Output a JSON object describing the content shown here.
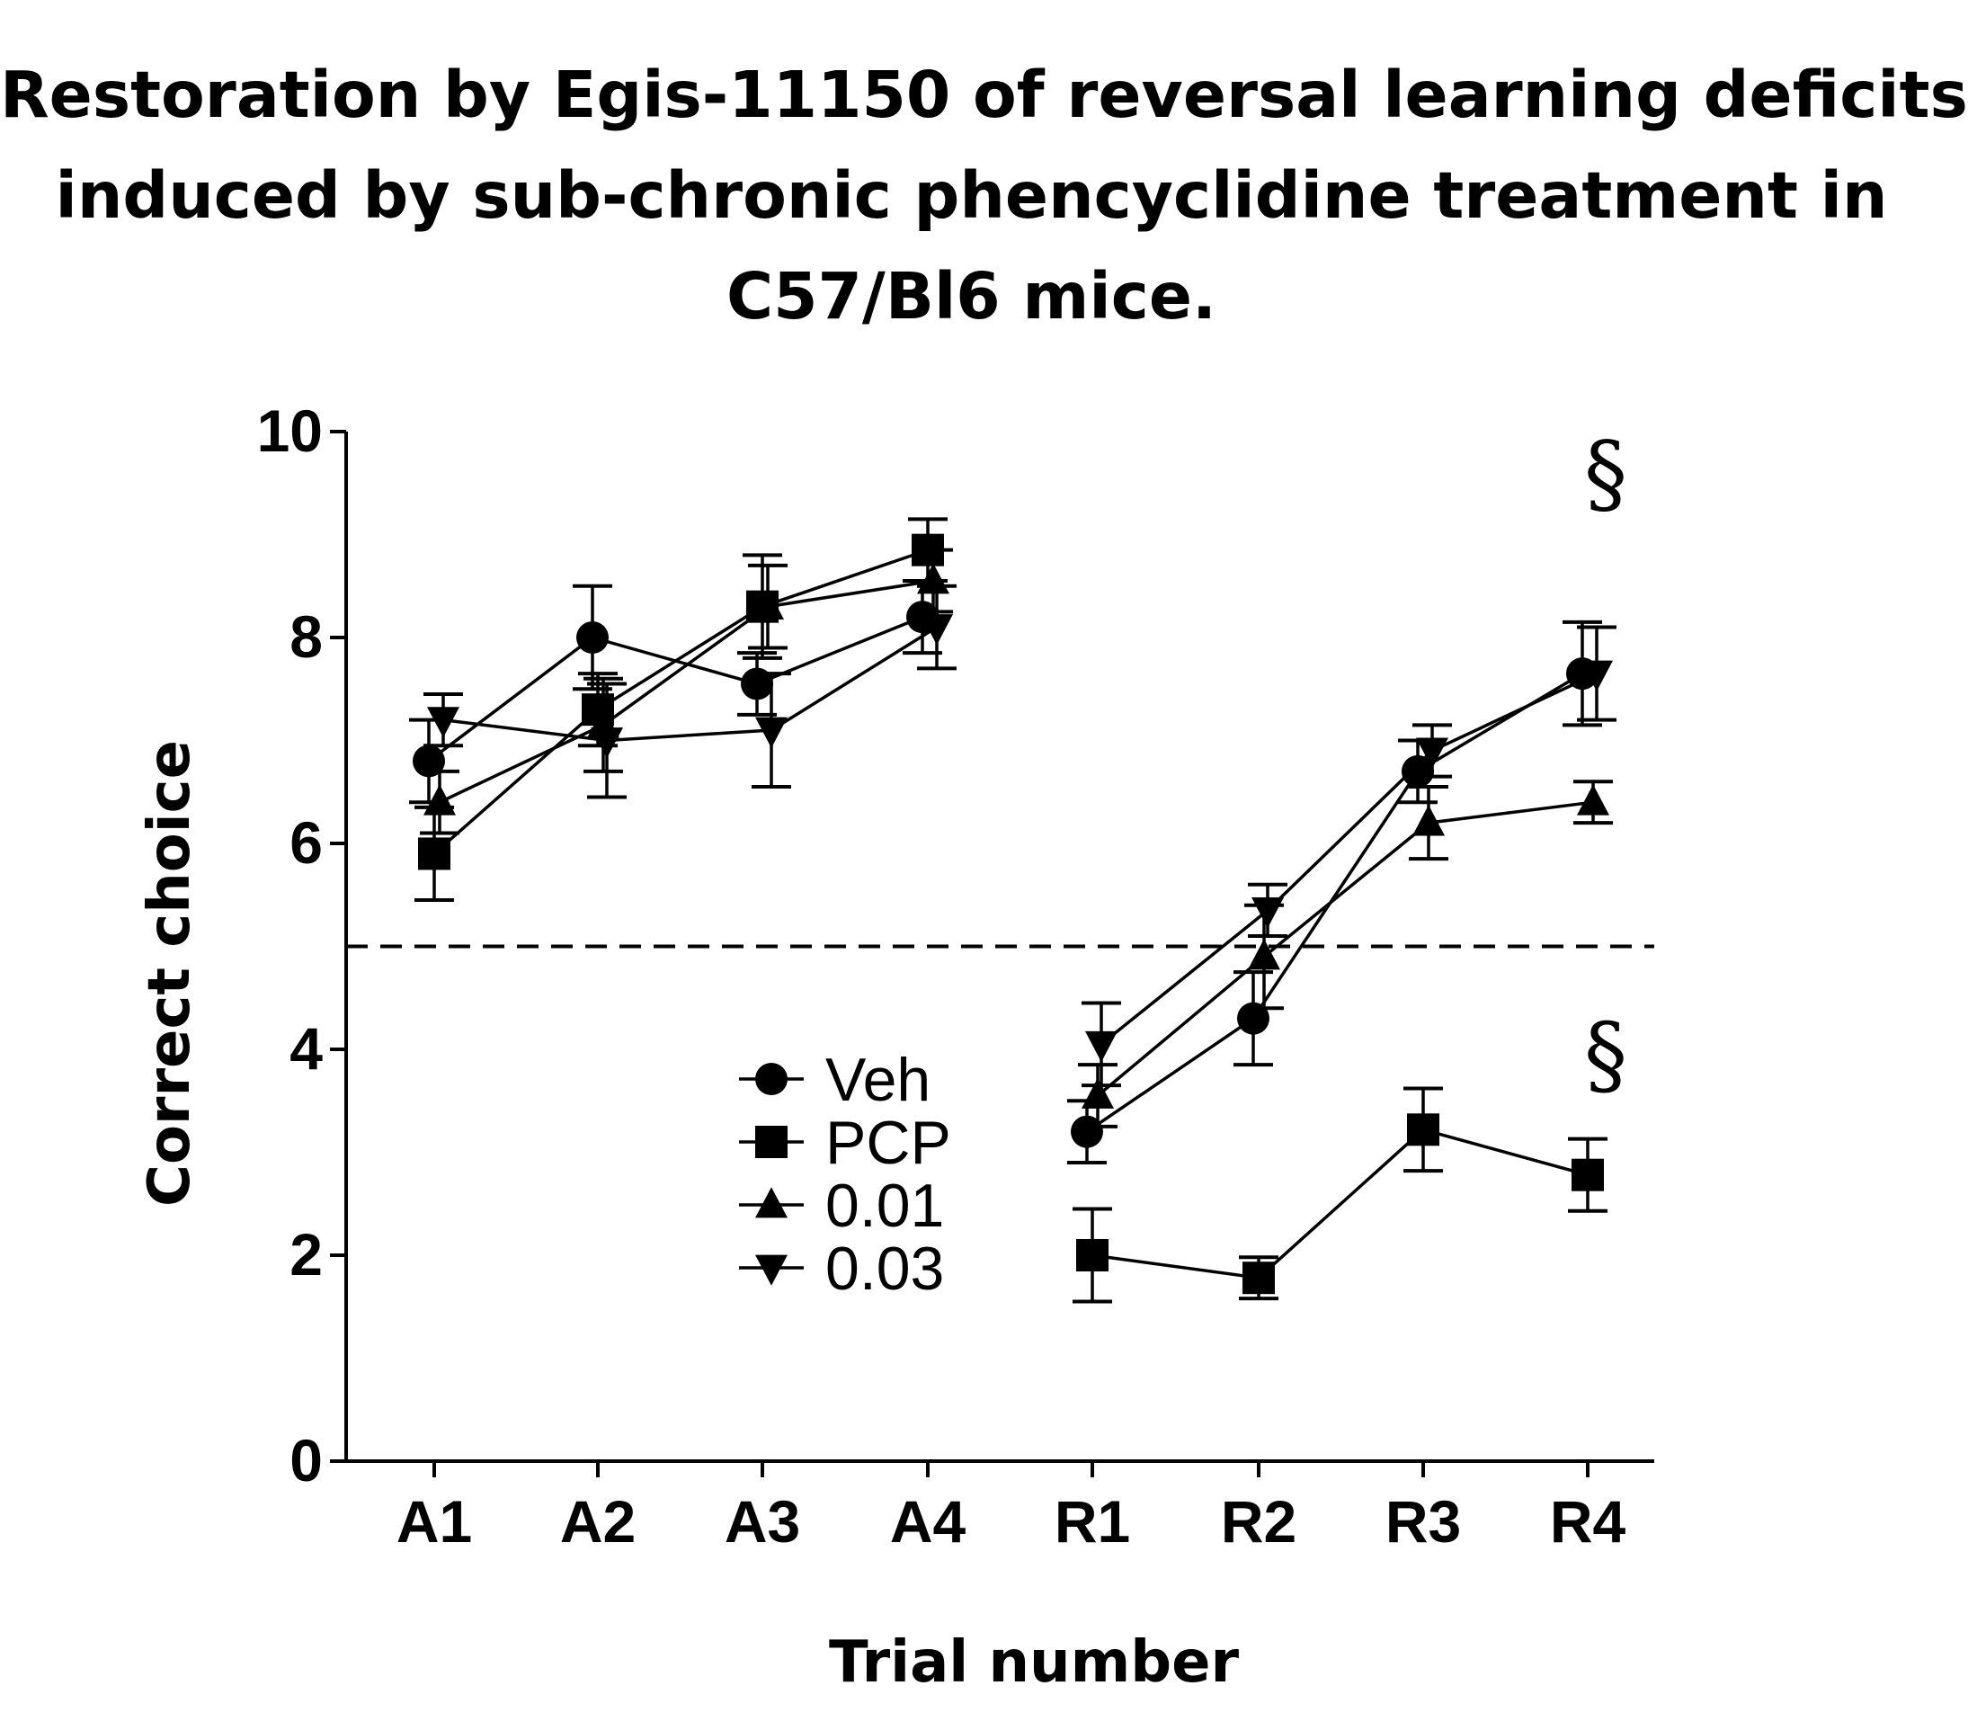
{
  "title_lines": [
    "Restoration by Egis-11150 of reversal learning deficits",
    "induced by sub-chronic phencyclidine treatment in",
    "C57/Bl6 mice."
  ],
  "chart_data": {
    "type": "line",
    "title": "Restoration by Egis-11150 of reversal learning deficits induced by sub-chronic phencyclidine treatment in C57/Bl6 mice.",
    "xlabel": "Trial number",
    "ylabel": "Correct choice",
    "categories": [
      "A1",
      "A2",
      "A3",
      "A4",
      "R1",
      "R2",
      "R3",
      "R4"
    ],
    "ylim": [
      0,
      10
    ],
    "yticks": [
      0,
      2,
      4,
      6,
      8,
      10
    ],
    "yticklabels": [
      "0",
      "2",
      "4",
      "6",
      "8",
      "10"
    ],
    "reference_line": {
      "y": 5,
      "style": "dashed"
    },
    "segments": [
      [
        0,
        1,
        2,
        3
      ],
      [
        4,
        5,
        6,
        7
      ]
    ],
    "series": [
      {
        "name": "Veh",
        "marker": "circle",
        "values": [
          6.8,
          8.0,
          7.55,
          8.2,
          3.2,
          4.3,
          6.7,
          7.65
        ],
        "errors": [
          0.4,
          0.5,
          0.3,
          0.35,
          0.3,
          0.45,
          0.3,
          0.5
        ]
      },
      {
        "name": "PCP",
        "marker": "square",
        "values": [
          5.9,
          7.3,
          8.3,
          8.85,
          2.0,
          1.78,
          3.22,
          2.78
        ],
        "errors": [
          0.45,
          0.35,
          0.5,
          0.3,
          0.45,
          0.2,
          0.4,
          0.35
        ]
      },
      {
        "name": "0.01",
        "marker": "triangle-up",
        "values": [
          6.4,
          7.15,
          8.3,
          8.55,
          3.55,
          4.9,
          6.2,
          6.4
        ],
        "errors": [
          0.3,
          0.45,
          0.4,
          0.3,
          0.3,
          0.5,
          0.35,
          0.2
        ]
      },
      {
        "name": "0.03",
        "marker": "triangle-down",
        "values": [
          7.2,
          7.0,
          7.1,
          8.1,
          4.05,
          5.35,
          6.9,
          7.65
        ],
        "errors": [
          0.25,
          0.55,
          0.55,
          0.4,
          0.4,
          0.25,
          0.25,
          0.45
        ]
      }
    ],
    "legend": {
      "position": "center",
      "entries": [
        "Veh",
        "PCP",
        "0.01",
        "0.03"
      ]
    },
    "annotations": [
      {
        "text": "§",
        "category": "R4",
        "y": 9.6
      },
      {
        "text": "§",
        "category": "R4",
        "y": 3.95
      }
    ]
  }
}
